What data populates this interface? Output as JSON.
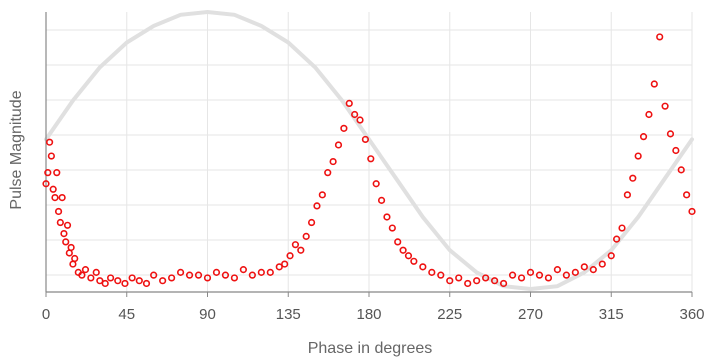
{
  "chart_data": {
    "type": "scatter",
    "title": "",
    "xlabel": "Phase in degrees",
    "ylabel": "Pulse Magnitude",
    "xlim": [
      0,
      360
    ],
    "ylim": [
      0,
      1
    ],
    "x_ticks": [
      0,
      45,
      90,
      135,
      180,
      225,
      270,
      315,
      360
    ],
    "x_tick_labels": [
      "0",
      "45",
      "90",
      "135",
      "180",
      "225",
      "270",
      "315",
      "360"
    ],
    "y_tick_labels": [],
    "grid": true,
    "legend": "none",
    "colors": {
      "points": "#ee1111",
      "reference_curve": "#e0e0e0",
      "grid": "#e6e6e6",
      "axis": "#888888"
    },
    "series": [
      {
        "type": "line",
        "x": [
          0,
          15,
          30,
          45,
          60,
          75,
          90,
          105,
          120,
          135,
          150,
          165,
          180,
          195,
          210,
          225,
          240,
          255,
          270,
          285,
          300,
          315,
          330,
          345,
          360
        ],
        "values": [
          0.54,
          0.68,
          0.8,
          0.89,
          0.95,
          0.99,
          1.0,
          0.99,
          0.95,
          0.89,
          0.8,
          0.68,
          0.54,
          0.4,
          0.26,
          0.14,
          0.06,
          0.01,
          0.0,
          0.01,
          0.06,
          0.14,
          0.26,
          0.4,
          0.54
        ]
      },
      {
        "type": "scatter",
        "x": [
          0,
          1,
          2,
          3,
          4,
          5,
          6,
          7,
          8,
          9,
          10,
          11,
          12,
          13,
          14,
          15,
          16,
          18,
          20,
          22,
          25,
          28,
          30,
          33,
          36,
          40,
          44,
          48,
          52,
          56,
          60,
          65,
          70,
          75,
          80,
          85,
          90,
          95,
          100,
          105,
          110,
          115,
          120,
          125,
          130,
          133,
          136,
          139,
          142,
          145,
          148,
          151,
          154,
          157,
          160,
          163,
          166,
          169,
          172,
          175,
          178,
          181,
          184,
          187,
          190,
          193,
          196,
          199,
          202,
          205,
          210,
          215,
          220,
          225,
          230,
          235,
          240,
          245,
          250,
          255,
          260,
          265,
          270,
          275,
          280,
          285,
          290,
          295,
          300,
          305,
          310,
          315,
          318,
          321,
          324,
          327,
          330,
          333,
          336,
          339,
          342,
          345,
          348,
          351,
          354,
          357,
          360
        ],
        "values": [
          0.38,
          0.42,
          0.53,
          0.48,
          0.36,
          0.33,
          0.42,
          0.28,
          0.24,
          0.33,
          0.2,
          0.17,
          0.23,
          0.13,
          0.15,
          0.09,
          0.11,
          0.06,
          0.05,
          0.07,
          0.04,
          0.06,
          0.03,
          0.02,
          0.04,
          0.03,
          0.02,
          0.04,
          0.03,
          0.02,
          0.05,
          0.03,
          0.04,
          0.06,
          0.05,
          0.05,
          0.04,
          0.06,
          0.05,
          0.04,
          0.07,
          0.05,
          0.06,
          0.06,
          0.08,
          0.09,
          0.12,
          0.16,
          0.14,
          0.19,
          0.24,
          0.3,
          0.34,
          0.42,
          0.46,
          0.52,
          0.58,
          0.67,
          0.63,
          0.61,
          0.54,
          0.47,
          0.38,
          0.32,
          0.26,
          0.22,
          0.17,
          0.14,
          0.12,
          0.1,
          0.08,
          0.06,
          0.05,
          0.03,
          0.04,
          0.02,
          0.03,
          0.04,
          0.03,
          0.02,
          0.05,
          0.04,
          0.06,
          0.05,
          0.04,
          0.07,
          0.05,
          0.06,
          0.08,
          0.07,
          0.09,
          0.12,
          0.18,
          0.22,
          0.34,
          0.4,
          0.48,
          0.55,
          0.63,
          0.74,
          0.91,
          0.66,
          0.56,
          0.5,
          0.43,
          0.34,
          0.28
        ]
      }
    ]
  }
}
